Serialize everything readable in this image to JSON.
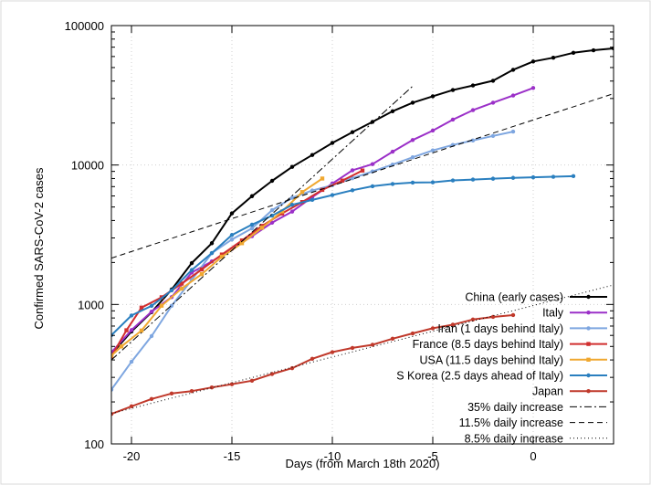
{
  "chart_data": {
    "type": "line",
    "xlabel": "Days (from March 18th 2020)",
    "ylabel": "Confirmed SARS-CoV-2 cases",
    "xlim": [
      -21,
      4
    ],
    "ylim": [
      100,
      100000
    ],
    "y_scale": "log",
    "x_ticks": [
      -20,
      -15,
      -10,
      -5,
      0
    ],
    "x_tick_labels": [
      "-20",
      "-15",
      "-10",
      "-5",
      "0"
    ],
    "y_ticks": [
      100,
      1000,
      10000,
      100000
    ],
    "y_tick_labels": [
      "100",
      "1000",
      "10000",
      "100000"
    ],
    "grid": true,
    "legend_position": "bottom-right",
    "series": [
      {
        "name": "China (early cases)",
        "color": "#000000",
        "marker": "dot",
        "x": [
          -21,
          -20,
          -19,
          -18,
          -17,
          -16,
          -15,
          -14,
          -13,
          -12,
          -11,
          -10,
          -9,
          -8,
          -7,
          -6,
          -5,
          -4,
          -3,
          -2,
          -1,
          0,
          1,
          2,
          3,
          4
        ],
        "y": [
          440,
          640,
          880,
          1280,
          1980,
          2750,
          4500,
          5980,
          7700,
          9700,
          11800,
          14400,
          17200,
          20400,
          24300,
          28000,
          31100,
          34500,
          37200,
          40200,
          48200,
          55300,
          58800,
          63800,
          66500,
          68600
        ]
      },
      {
        "name": "Italy",
        "color": "#9b30c8",
        "marker": "dot",
        "x": [
          -21,
          -20,
          -19,
          -18,
          -17,
          -16,
          -15,
          -14,
          -13,
          -12,
          -11,
          -10,
          -9,
          -8,
          -7,
          -6,
          -5,
          -4,
          -3,
          -2,
          -1,
          0
        ],
        "y": [
          453,
          655,
          888,
          1128,
          1694,
          2036,
          2502,
          3089,
          3858,
          4636,
          5883,
          7375,
          9172,
          10149,
          12462,
          15113,
          17660,
          21157,
          24747,
          27980,
          31506,
          35713
        ]
      },
      {
        "name": "Iran (1 days behind Italy)",
        "color": "#7ea6e0",
        "marker": "dot",
        "x": [
          -21,
          -20,
          -19,
          -18,
          -17,
          -16,
          -15,
          -14,
          -13,
          -12,
          -11,
          -10,
          -9,
          -8,
          -7,
          -6,
          -5,
          -4,
          -3,
          -2,
          -1
        ],
        "y": [
          245,
          388,
          593,
          978,
          1501,
          2336,
          2922,
          3513,
          4747,
          5823,
          6566,
          7161,
          8042,
          9000,
          10075,
          11364,
          12729,
          13938,
          14991,
          16169,
          17361
        ]
      },
      {
        "name": "France (8.5 days behind Italy)",
        "color": "#d12f2f",
        "marker": "square",
        "x": [
          -21,
          -20.25,
          -19.5,
          -18.5,
          -17.5,
          -16.5,
          -15.5,
          -14.5,
          -13.5,
          -12.5,
          -11.5,
          -10.5,
          -9.5,
          -8.5
        ],
        "y": [
          423,
          653,
          949,
          1126,
          1412,
          1784,
          2281,
          2876,
          3661,
          4499,
          5423,
          6633,
          7730,
          9134
        ]
      },
      {
        "name": "USA (11.5 days behind Italy)",
        "color": "#f0a830",
        "marker": "square",
        "x": [
          -21,
          -20.5,
          -19.5,
          -18.5,
          -17.5,
          -16.5,
          -15.5,
          -14.5,
          -13.5,
          -12.5,
          -11.5,
          -10.5
        ],
        "y": [
          430,
          500,
          650,
          980,
          1300,
          1650,
          2200,
          2750,
          3550,
          4650,
          6400,
          8000
        ]
      },
      {
        "name": "S Korea (2.5 days ahead of Italy)",
        "color": "#2a7fbf",
        "marker": "dot",
        "x": [
          -21,
          -20,
          -19,
          -18,
          -17,
          -16,
          -15,
          -14,
          -13,
          -12,
          -11,
          -10,
          -9,
          -8,
          -7,
          -6,
          -5,
          -4,
          -3,
          -2,
          -1,
          0,
          1,
          2
        ],
        "y": [
          602,
          833,
          977,
          1261,
          1766,
          2337,
          3150,
          3736,
          4335,
          5186,
          5621,
          6088,
          6593,
          7041,
          7313,
          7478,
          7513,
          7755,
          7869,
          7979,
          8086,
          8162,
          8236,
          8320
        ]
      },
      {
        "name": "Japan",
        "color": "#c0392b",
        "marker": "dot",
        "x": [
          -21,
          -20,
          -19,
          -18,
          -17,
          -16,
          -15,
          -14,
          -13,
          -12,
          -11,
          -10,
          -9,
          -8,
          -7,
          -6,
          -5,
          -4,
          -3,
          -2,
          -1
        ],
        "y": [
          164,
          186,
          210,
          230,
          239,
          254,
          268,
          284,
          317,
          349,
          408,
          455,
          488,
          514,
          568,
          620,
          675,
          716,
          780,
          814,
          839
        ]
      },
      {
        "name": "35% daily increase",
        "color": "#000000",
        "dash": "dashdot",
        "marker": "none",
        "x": [
          -21,
          -6
        ],
        "y": [
          400,
          36800
        ]
      },
      {
        "name": "11.5% daily increase",
        "color": "#000000",
        "dash": "dashed",
        "marker": "none",
        "x": [
          -21,
          4
        ],
        "y": [
          2150,
          32500
        ]
      },
      {
        "name": "8.5% daily increase",
        "color": "#000000",
        "dash": "dotted",
        "marker": "none",
        "x": [
          -21,
          4
        ],
        "y": [
          165,
          1380
        ]
      }
    ]
  }
}
